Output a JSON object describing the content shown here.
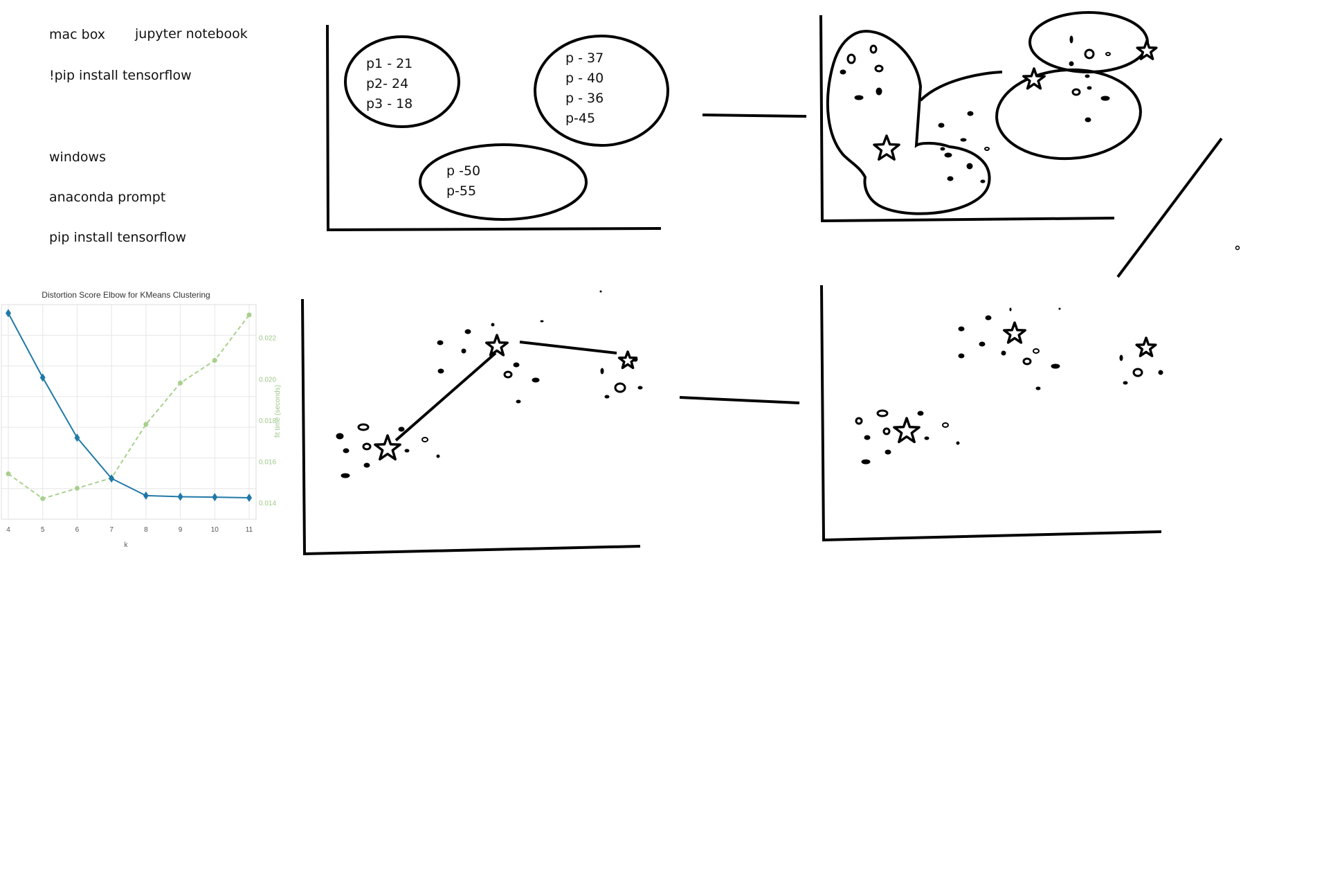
{
  "notes": {
    "mac_box": "mac box",
    "jupyter_notebook": "jupyter notebook",
    "pip_install_mac": "!pip install tensorflow",
    "windows": "windows",
    "anaconda_prompt": "anaconda prompt",
    "pip_install_windows": "pip install tensorflow"
  },
  "sketch1_labels": {
    "c1_l1": "p1 - 21",
    "c1_l2": "p2- 24",
    "c1_l3": "p3 - 18",
    "c2_l1": "p - 37",
    "c2_l2": "p - 40",
    "c2_l3": "p - 36",
    "c2_l4": "p-45",
    "c3_l1": "p -50",
    "c3_l2": "p-55"
  },
  "colors": {
    "distortion": "#1f78a8",
    "fit_time": "#a8d08d",
    "sketch": "#000000",
    "grid": "#e6e6e6"
  },
  "chart_data": {
    "type": "line",
    "title": "Distortion Score Elbow for KMeans Clustering",
    "xlabel": "k",
    "ylabel": "",
    "y2label": "fit time (seconds)",
    "x": [
      4,
      5,
      6,
      7,
      8,
      9,
      10,
      11
    ],
    "xticks": [
      "4",
      "5",
      "6",
      "7",
      "8",
      "9",
      "10",
      "11"
    ],
    "y2ticks": [
      "0.014",
      "0.016",
      "0.018",
      "0.020",
      "0.022"
    ],
    "y2lim": [
      0.0132,
      0.0236
    ],
    "ylim": [
      0,
      1
    ],
    "series": [
      {
        "values": [
          0.96,
          0.66,
          0.38,
          0.19,
          0.11,
          0.105,
          0.103,
          0.1
        ]
      },
      {
        "values": [
          0.0154,
          0.0142,
          0.0147,
          0.0152,
          0.0178,
          0.0198,
          0.0209,
          0.0231
        ]
      }
    ],
    "grid": true
  }
}
